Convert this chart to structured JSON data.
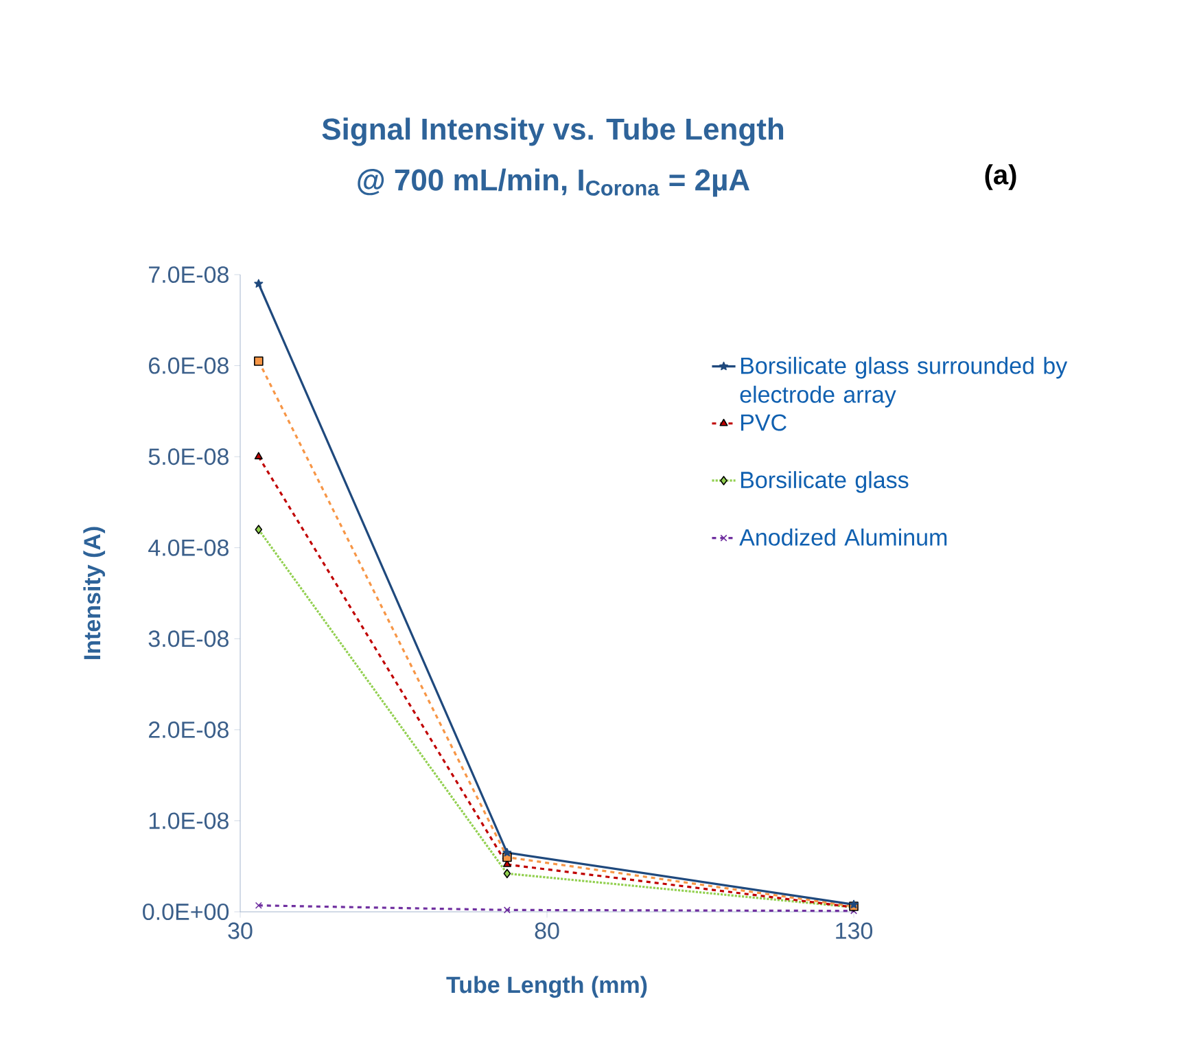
{
  "chart_data": {
    "type": "line",
    "title": "Signal Intensity vs. Tube Length",
    "subtitle": "@ 700 mL/min, I$_{Corona}$ = 2µA",
    "xlabel": "Tube Length (mm)",
    "ylabel": "Intensity (A)",
    "annotations": [
      "(a)"
    ],
    "x": [
      33,
      73.5,
      130
    ],
    "xlim": [
      30,
      130
    ],
    "xticks": [
      30,
      80,
      130
    ],
    "ylim": [
      0,
      7e-08
    ],
    "yticks": [
      {
        "value": 0,
        "label": "0.0E+00"
      },
      {
        "value": 1e-08,
        "label": "1.0E-08"
      },
      {
        "value": 2e-08,
        "label": "2.0E-08"
      },
      {
        "value": 3e-08,
        "label": "3.0E-08"
      },
      {
        "value": 4e-08,
        "label": "4.0E-08"
      },
      {
        "value": 5e-08,
        "label": "5.0E-08"
      },
      {
        "value": 6e-08,
        "label": "6.0E-08"
      },
      {
        "value": 7e-08,
        "label": "7.0E-08"
      }
    ],
    "legend": "right",
    "series": [
      {
        "name": "Borsilicate glass surrounded by electrode array",
        "color": "#1f497d",
        "marker": "star",
        "line_style": "solid",
        "values": [
          6.9e-08,
          6.5e-09,
          8e-10
        ]
      },
      {
        "color": "#f79646",
        "marker": "square",
        "line_style": "dashed",
        "values": [
          6.05e-08,
          6e-09,
          6e-10
        ]
      },
      {
        "name": "PVC",
        "color": "#c00000",
        "marker": "triangle",
        "line_style": "dashed",
        "values": [
          5e-08,
          5.2e-09,
          5e-10
        ]
      },
      {
        "name": "Borsilicate glass",
        "color": "#92d050",
        "marker": "diamond",
        "line_style": "dotted",
        "values": [
          4.2e-08,
          4.2e-09,
          5e-10
        ]
      },
      {
        "name": "Anodized Aluminum",
        "color": "#7030a0",
        "marker": "cross",
        "line_style": "dashed",
        "values": [
          7e-10,
          2e-10,
          1e-10
        ]
      }
    ]
  }
}
